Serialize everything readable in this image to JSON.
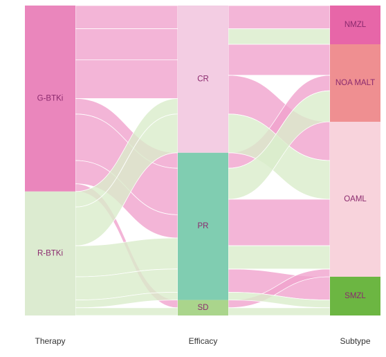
{
  "chart_data": {
    "type": "alluvial",
    "axes": [
      {
        "name": "Therapy",
        "nodes": [
          {
            "label": "G-BTKi",
            "color": "#ea86bc",
            "flow_color": "#f0a3cd"
          },
          {
            "label": "R-BTKi",
            "color": "#dcebd0",
            "flow_color": "#d9ecca"
          }
        ]
      },
      {
        "name": "Efficacy",
        "nodes": [
          {
            "label": "CR",
            "color": "#f3cde3"
          },
          {
            "label": "PR",
            "color": "#80cdb1"
          },
          {
            "label": "SD",
            "color": "#aad58c"
          }
        ]
      },
      {
        "name": "Subtype",
        "nodes": [
          {
            "label": "NMZL",
            "color": "#e766a8"
          },
          {
            "label": "NOA MALT",
            "color": "#ef8f91"
          },
          {
            "label": "OAML",
            "color": "#f8d3dc"
          },
          {
            "label": "SMZL",
            "color": "#6cb642"
          }
        ]
      }
    ],
    "flows": [
      {
        "path": [
          "G-BTKi",
          "CR",
          "NMZL"
        ],
        "value": 3
      },
      {
        "path": [
          "G-BTKi",
          "CR",
          "NOA MALT"
        ],
        "value": 4
      },
      {
        "path": [
          "G-BTKi",
          "CR",
          "OAML"
        ],
        "value": 5
      },
      {
        "path": [
          "G-BTKi",
          "PR",
          "NOA MALT"
        ],
        "value": 2
      },
      {
        "path": [
          "G-BTKi",
          "PR",
          "OAML"
        ],
        "value": 6
      },
      {
        "path": [
          "G-BTKi",
          "PR",
          "SMZL"
        ],
        "value": 3
      },
      {
        "path": [
          "G-BTKi",
          "SD",
          "OAML"
        ],
        "value": 1
      },
      {
        "path": [
          "R-BTKi",
          "CR",
          "NMZL"
        ],
        "value": 2
      },
      {
        "path": [
          "R-BTKi",
          "CR",
          "OAML"
        ],
        "value": 5
      },
      {
        "path": [
          "R-BTKi",
          "PR",
          "NOA MALT"
        ],
        "value": 4
      },
      {
        "path": [
          "R-BTKi",
          "PR",
          "OAML"
        ],
        "value": 3
      },
      {
        "path": [
          "R-BTKi",
          "PR",
          "SMZL"
        ],
        "value": 1
      },
      {
        "path": [
          "R-BTKi",
          "SD",
          "SMZL"
        ],
        "value": 1
      }
    ]
  }
}
